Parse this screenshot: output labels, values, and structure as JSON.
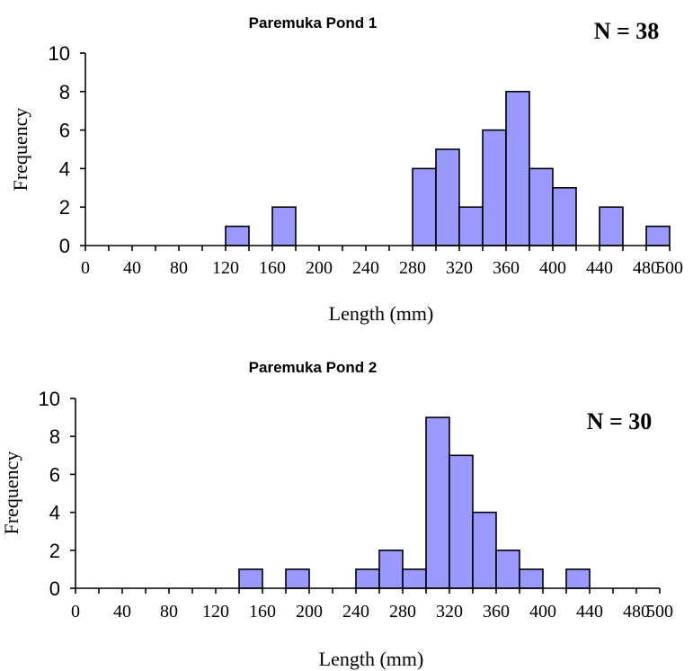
{
  "chart_data": [
    {
      "type": "bar",
      "title": "Paremuka Pond 1",
      "annotation": "N = 38",
      "xlabel": "Length (mm)",
      "ylabel": "Frequency",
      "xlim": [
        0,
        500
      ],
      "ylim": [
        0,
        10
      ],
      "bin_width": 20,
      "x_ticks": [
        0,
        40,
        80,
        120,
        160,
        200,
        240,
        280,
        320,
        360,
        400,
        440,
        480,
        500
      ],
      "y_ticks": [
        0,
        2,
        4,
        6,
        8,
        10
      ],
      "color": "#9999ff",
      "bins": [
        {
          "x": 120,
          "value": 1
        },
        {
          "x": 160,
          "value": 2
        },
        {
          "x": 280,
          "value": 4
        },
        {
          "x": 300,
          "value": 5
        },
        {
          "x": 320,
          "value": 2
        },
        {
          "x": 340,
          "value": 6
        },
        {
          "x": 360,
          "value": 8
        },
        {
          "x": 380,
          "value": 4
        },
        {
          "x": 400,
          "value": 3
        },
        {
          "x": 440,
          "value": 2
        },
        {
          "x": 480,
          "value": 1
        }
      ]
    },
    {
      "type": "bar",
      "title": "Paremuka Pond 2",
      "annotation": "N = 30",
      "xlabel": "Length (mm)",
      "ylabel": "Frequency",
      "xlim": [
        0,
        500
      ],
      "ylim": [
        0,
        10
      ],
      "bin_width": 20,
      "x_ticks": [
        0,
        40,
        80,
        120,
        160,
        200,
        240,
        280,
        320,
        360,
        400,
        440,
        480,
        500
      ],
      "y_ticks": [
        0,
        2,
        4,
        6,
        8,
        10
      ],
      "color": "#9999ff",
      "bins": [
        {
          "x": 140,
          "value": 1
        },
        {
          "x": 180,
          "value": 1
        },
        {
          "x": 240,
          "value": 1
        },
        {
          "x": 260,
          "value": 2
        },
        {
          "x": 280,
          "value": 1
        },
        {
          "x": 300,
          "value": 9
        },
        {
          "x": 320,
          "value": 7
        },
        {
          "x": 340,
          "value": 4
        },
        {
          "x": 360,
          "value": 2
        },
        {
          "x": 380,
          "value": 1
        },
        {
          "x": 420,
          "value": 1
        }
      ]
    }
  ]
}
